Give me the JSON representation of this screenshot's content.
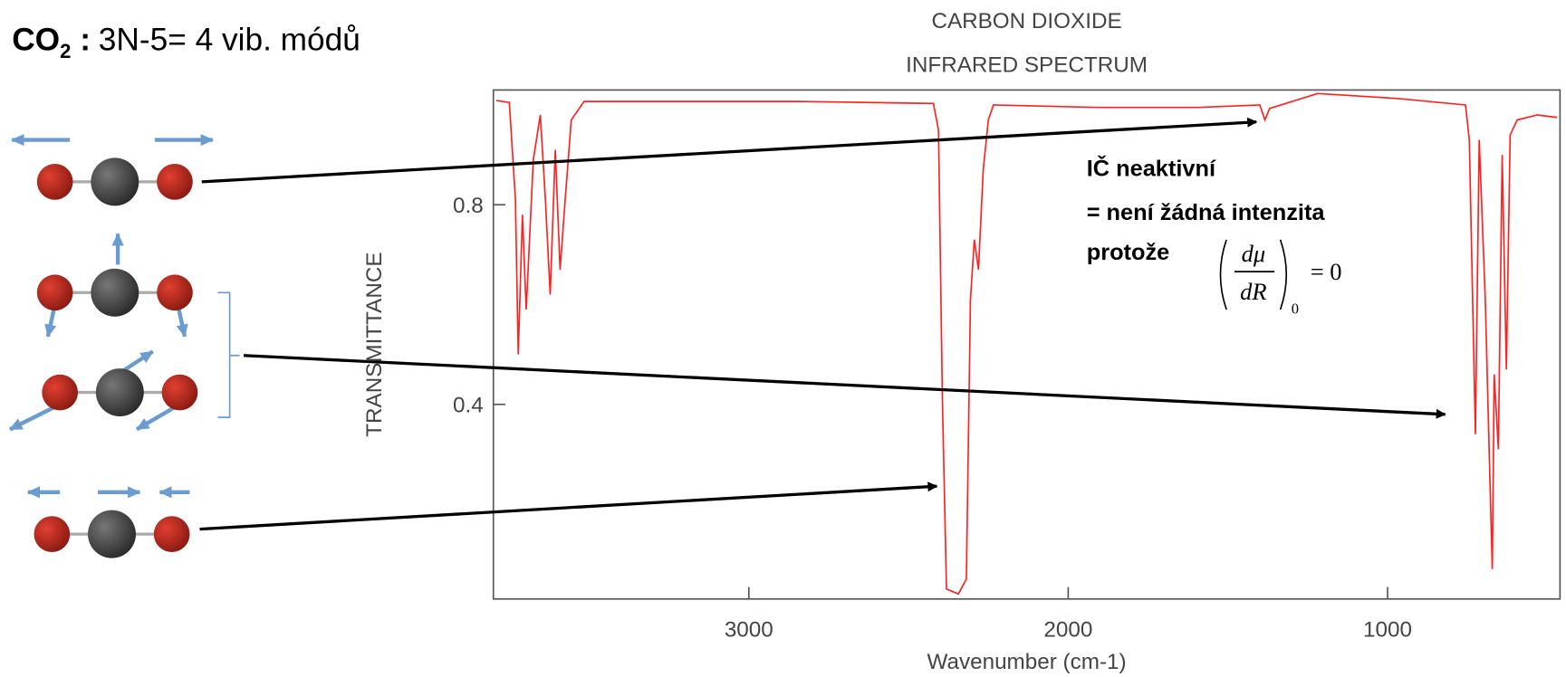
{
  "slide": {
    "heading": {
      "formula": "CO",
      "subscript": "2",
      "colon": " :",
      "text": "3N-5= 4 vib. módů"
    },
    "note": {
      "lines": [
        "IČ neaktivní",
        "= není žádná intenzita",
        "protože"
      ],
      "formula": {
        "numerator": "dμ",
        "denominator": "dR",
        "subscript": "0",
        "rhs": "= 0"
      }
    }
  },
  "chart_data": {
    "type": "line",
    "title": "CARBON DIOXIDE",
    "subtitle": "INFRARED SPECTRUM",
    "x_label": "Wavenumber (cm-1)",
    "y_label": "TRANSMITTANCE",
    "color": "#ff2020",
    "x": [
      3791,
      3750,
      3731,
      3722,
      3709,
      3697,
      3675,
      3653,
      3637,
      3622,
      3606,
      3591,
      3575,
      3556,
      3516,
      3156,
      2844,
      2422,
      2406,
      2394,
      2381,
      2344,
      2319,
      2306,
      2294,
      2281,
      2266,
      2250,
      2234,
      1906,
      1594,
      1400,
      1384,
      1369,
      1219,
      969,
      756,
      744,
      725,
      713,
      694,
      681,
      672,
      666,
      653,
      641,
      628,
      616,
      594,
      531,
      469
    ],
    "values": [
      1.009,
      1.005,
      0.81,
      0.5,
      0.78,
      0.59,
      0.89,
      0.98,
      0.81,
      0.62,
      0.91,
      0.67,
      0.81,
      0.97,
      1.007,
      1.007,
      1.007,
      1.003,
      0.95,
      0.41,
      0.03,
      0.02,
      0.05,
      0.61,
      0.73,
      0.67,
      0.87,
      0.97,
      1.0,
      0.995,
      0.995,
      1.0,
      0.97,
      0.993,
      1.023,
      1.013,
      1.0,
      0.93,
      0.34,
      0.93,
      0.61,
      0.29,
      0.07,
      0.46,
      0.31,
      0.9,
      0.47,
      0.94,
      0.97,
      0.98,
      0.975
    ],
    "xlim": [
      3800,
      460
    ],
    "ylim": [
      0.01,
      1.03
    ],
    "xticks": [
      3000,
      2000,
      1000
    ],
    "yticks": [
      0.4,
      0.8
    ]
  }
}
